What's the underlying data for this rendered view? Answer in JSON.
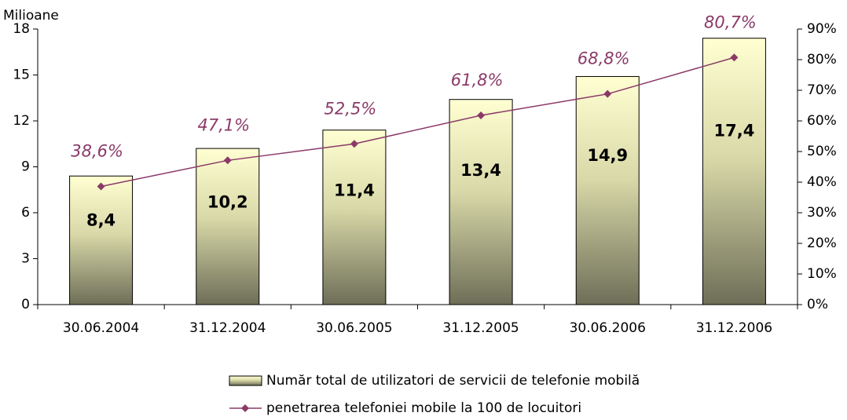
{
  "chart_data": {
    "type": "bar_line",
    "y_label": "Milioane",
    "categories": [
      "30.06.2004",
      "31.12.2004",
      "30.06.2005",
      "31.12.2005",
      "30.06.2006",
      "31.12.2006"
    ],
    "series": [
      {
        "name": "Număr total de utilizatori de servicii de telefonie mobilă",
        "type": "bar",
        "color": "#ffffd0",
        "values": [
          8.4,
          10.2,
          11.4,
          13.4,
          14.9,
          17.4
        ],
        "value_labels": [
          "8,4",
          "10,2",
          "11,4",
          "13,4",
          "14,9",
          "17,4"
        ]
      },
      {
        "name": "penetrarea telefoniei mobile la 100 de locuitori",
        "type": "line",
        "axis": "y2",
        "color": "#8b3a68",
        "values": [
          38.6,
          47.1,
          52.5,
          61.8,
          68.8,
          80.7
        ],
        "value_labels": [
          "38,6%",
          "47,1%",
          "52,5%",
          "61,8%",
          "68,8%",
          "80,7%"
        ]
      }
    ],
    "ylim": [
      0,
      18
    ],
    "yticks": [
      0,
      3,
      6,
      9,
      12,
      15,
      18
    ],
    "y2lim": [
      0,
      90
    ],
    "y2ticks": [
      {
        "value": 0,
        "label": "0%"
      },
      {
        "value": 10,
        "label": "10%"
      },
      {
        "value": 20,
        "label": "20%"
      },
      {
        "value": 30,
        "label": "30%"
      },
      {
        "value": 40,
        "label": "40%"
      },
      {
        "value": 50,
        "label": "50%"
      },
      {
        "value": 60,
        "label": "60%"
      },
      {
        "value": 70,
        "label": "70%"
      },
      {
        "value": 80,
        "label": "80%"
      },
      {
        "value": 90,
        "label": "90%"
      }
    ],
    "legend": "bottom"
  }
}
